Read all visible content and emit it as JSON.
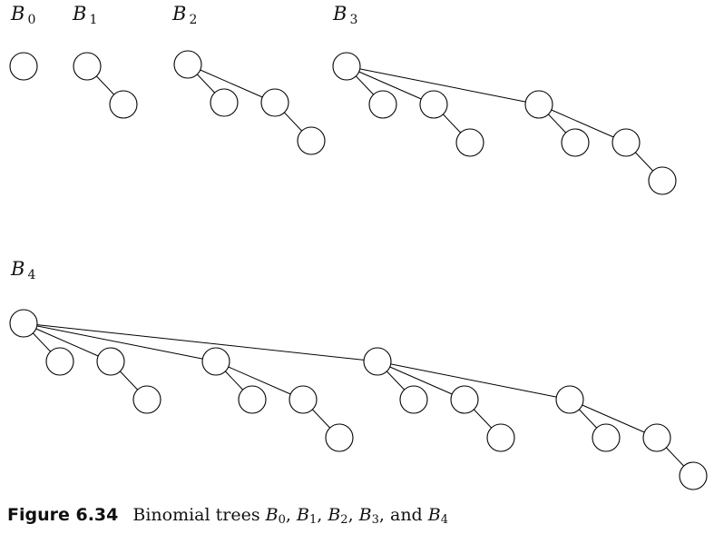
{
  "caption": {
    "figure_number": "Figure 6.34",
    "text_parts": [
      {
        "text": "Binomial trees "
      },
      {
        "text": "B",
        "italic": true,
        "sub": "0"
      },
      {
        "text": ", "
      },
      {
        "text": "B",
        "italic": true,
        "sub": "1"
      },
      {
        "text": ", "
      },
      {
        "text": "B",
        "italic": true,
        "sub": "2"
      },
      {
        "text": ", "
      },
      {
        "text": "B",
        "italic": true,
        "sub": "3"
      },
      {
        "text": ", and "
      },
      {
        "text": "B",
        "italic": true,
        "sub": "4"
      }
    ]
  },
  "trees": [
    {
      "letter": "B",
      "subscript": "0",
      "order": 0
    },
    {
      "letter": "B",
      "subscript": "1",
      "order": 1
    },
    {
      "letter": "B",
      "subscript": "2",
      "order": 2
    },
    {
      "letter": "B",
      "subscript": "3",
      "order": 3
    },
    {
      "letter": "B",
      "subscript": "4",
      "order": 4
    }
  ]
}
